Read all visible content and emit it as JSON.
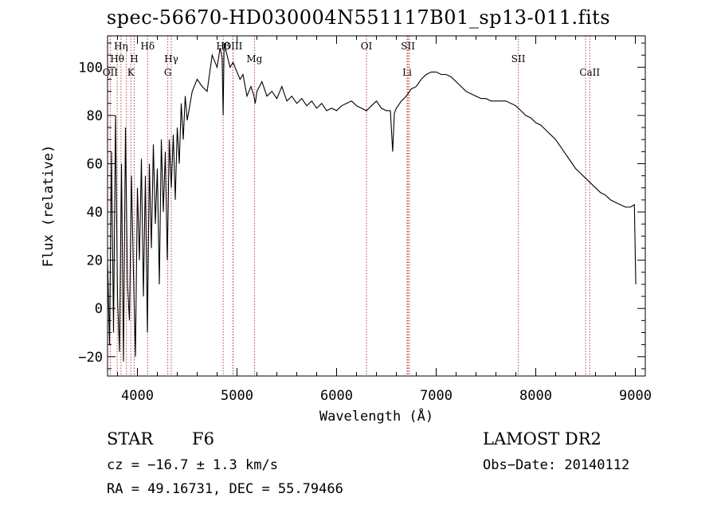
{
  "chart_data": {
    "type": "line",
    "title": "spec-56670-HD030004N551117B01_sp13-011.fits",
    "xlabel": "Wavelength (Å)",
    "ylabel": "Flux (relative)",
    "xlim": [
      3700,
      9100
    ],
    "ylim": [
      -28,
      113
    ],
    "xticks": [
      4000,
      5000,
      6000,
      7000,
      8000,
      9000
    ],
    "yticks": [
      -20,
      0,
      20,
      40,
      60,
      80,
      100
    ],
    "grid": false,
    "series": [
      {
        "name": "flux",
        "x": [
          3700,
          3720,
          3740,
          3760,
          3780,
          3800,
          3820,
          3840,
          3860,
          3880,
          3900,
          3920,
          3940,
          3960,
          3980,
          4000,
          4020,
          4040,
          4060,
          4080,
          4100,
          4120,
          4140,
          4160,
          4180,
          4200,
          4220,
          4240,
          4260,
          4280,
          4300,
          4320,
          4340,
          4360,
          4380,
          4400,
          4420,
          4440,
          4460,
          4480,
          4500,
          4550,
          4600,
          4650,
          4700,
          4750,
          4800,
          4830,
          4850,
          4861,
          4870,
          4900,
          4930,
          4960,
          5000,
          5030,
          5060,
          5100,
          5140,
          5170,
          5183,
          5200,
          5250,
          5300,
          5350,
          5400,
          5450,
          5500,
          5550,
          5600,
          5650,
          5700,
          5750,
          5800,
          5850,
          5900,
          5950,
          6000,
          6050,
          6100,
          6150,
          6200,
          6250,
          6300,
          6350,
          6400,
          6450,
          6500,
          6540,
          6563,
          6580,
          6600,
          6650,
          6700,
          6750,
          6800,
          6850,
          6900,
          6950,
          7000,
          7050,
          7100,
          7150,
          7200,
          7250,
          7300,
          7350,
          7400,
          7450,
          7500,
          7550,
          7600,
          7650,
          7700,
          7750,
          7800,
          7850,
          7900,
          7950,
          8000,
          8050,
          8100,
          8150,
          8200,
          8250,
          8300,
          8350,
          8400,
          8450,
          8500,
          8550,
          8600,
          8650,
          8700,
          8750,
          8800,
          8850,
          8900,
          8950,
          8990,
          9000,
          9005
        ],
        "values": [
          20,
          -15,
          65,
          -10,
          80,
          5,
          -18,
          60,
          -22,
          75,
          10,
          -5,
          55,
          15,
          -20,
          50,
          20,
          62,
          5,
          55,
          -10,
          60,
          25,
          68,
          35,
          58,
          10,
          70,
          40,
          65,
          20,
          70,
          50,
          72,
          45,
          75,
          60,
          85,
          70,
          88,
          78,
          90,
          95,
          92,
          90,
          105,
          100,
          108,
          104,
          80,
          110,
          105,
          100,
          102,
          98,
          95,
          97,
          88,
          92,
          88,
          85,
          90,
          94,
          88,
          90,
          87,
          92,
          86,
          88,
          85,
          87,
          84,
          86,
          83,
          85,
          82,
          83,
          82,
          84,
          85,
          86,
          84,
          83,
          82,
          84,
          86,
          83,
          82,
          82,
          65,
          81,
          83,
          86,
          88,
          91,
          92,
          95,
          97,
          98,
          98,
          97,
          97,
          96,
          94,
          92,
          90,
          89,
          88,
          87,
          87,
          86,
          86,
          86,
          86,
          85,
          84,
          82,
          80,
          79,
          77,
          76,
          74,
          72,
          70,
          67,
          64,
          61,
          58,
          56,
          54,
          52,
          50,
          48,
          47,
          45,
          44,
          43,
          42,
          42,
          43,
          20,
          10
        ]
      }
    ],
    "spectral_lines": [
      {
        "label": "Hη",
        "wavelength": 3835,
        "row": 1
      },
      {
        "label": "Hθ",
        "wavelength": 3797,
        "row": 2
      },
      {
        "label": "H",
        "wavelength": 3968,
        "row": 2
      },
      {
        "label": "OII",
        "wavelength": 3727,
        "row": 3
      },
      {
        "label": "K",
        "wavelength": 3934,
        "row": 3
      },
      {
        "label": "Hδ",
        "wavelength": 4102,
        "row": 1
      },
      {
        "label": "Hγ",
        "wavelength": 4340,
        "row": 2
      },
      {
        "label": "G",
        "wavelength": 4305,
        "row": 3
      },
      {
        "label": "Hβ",
        "wavelength": 4861,
        "row": 1
      },
      {
        "label": "OIII",
        "wavelength": 4959,
        "row": 1
      },
      {
        "label": "Mg",
        "wavelength": 5175,
        "row": 2
      },
      {
        "label": "OI",
        "wavelength": 6300,
        "row": 1
      },
      {
        "label": "SII",
        "wavelength": 6717,
        "row": 1
      },
      {
        "label": "Li",
        "wavelength": 6708,
        "row": 3
      },
      {
        "label": "SII",
        "wavelength": 7825,
        "row": 2
      },
      {
        "label": "CaII",
        "wavelength": 8542,
        "row": 3
      }
    ],
    "extra_lines": [
      3889,
      4960,
      6731,
      8500
    ]
  },
  "info": {
    "object_class": "STAR",
    "subclass": "F6",
    "survey": "LAMOST DR2",
    "redshift": "cz = −16.7 ± 1.3 km/s",
    "obs_date": "Obs−Date: 20140112",
    "coords": "RA =  49.16731, DEC =  55.79466"
  },
  "colors": {
    "spectrum": "#000000",
    "marker_line": "#b03030",
    "axes": "#000000"
  }
}
